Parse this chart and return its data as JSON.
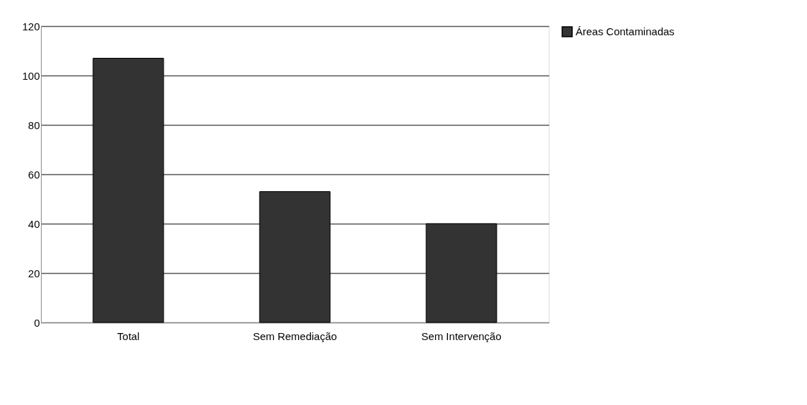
{
  "chart_data": {
    "type": "bar",
    "categories": [
      "Total",
      "Sem Remediação",
      "Sem Intervenção"
    ],
    "series": [
      {
        "name": "Áreas Contaminadas",
        "color": "#333333",
        "values": [
          107,
          53,
          40
        ]
      }
    ],
    "ylim": [
      0,
      120
    ],
    "yticks": [
      0,
      20,
      40,
      60,
      80,
      100,
      120
    ],
    "grid": "y",
    "legend": "right"
  }
}
